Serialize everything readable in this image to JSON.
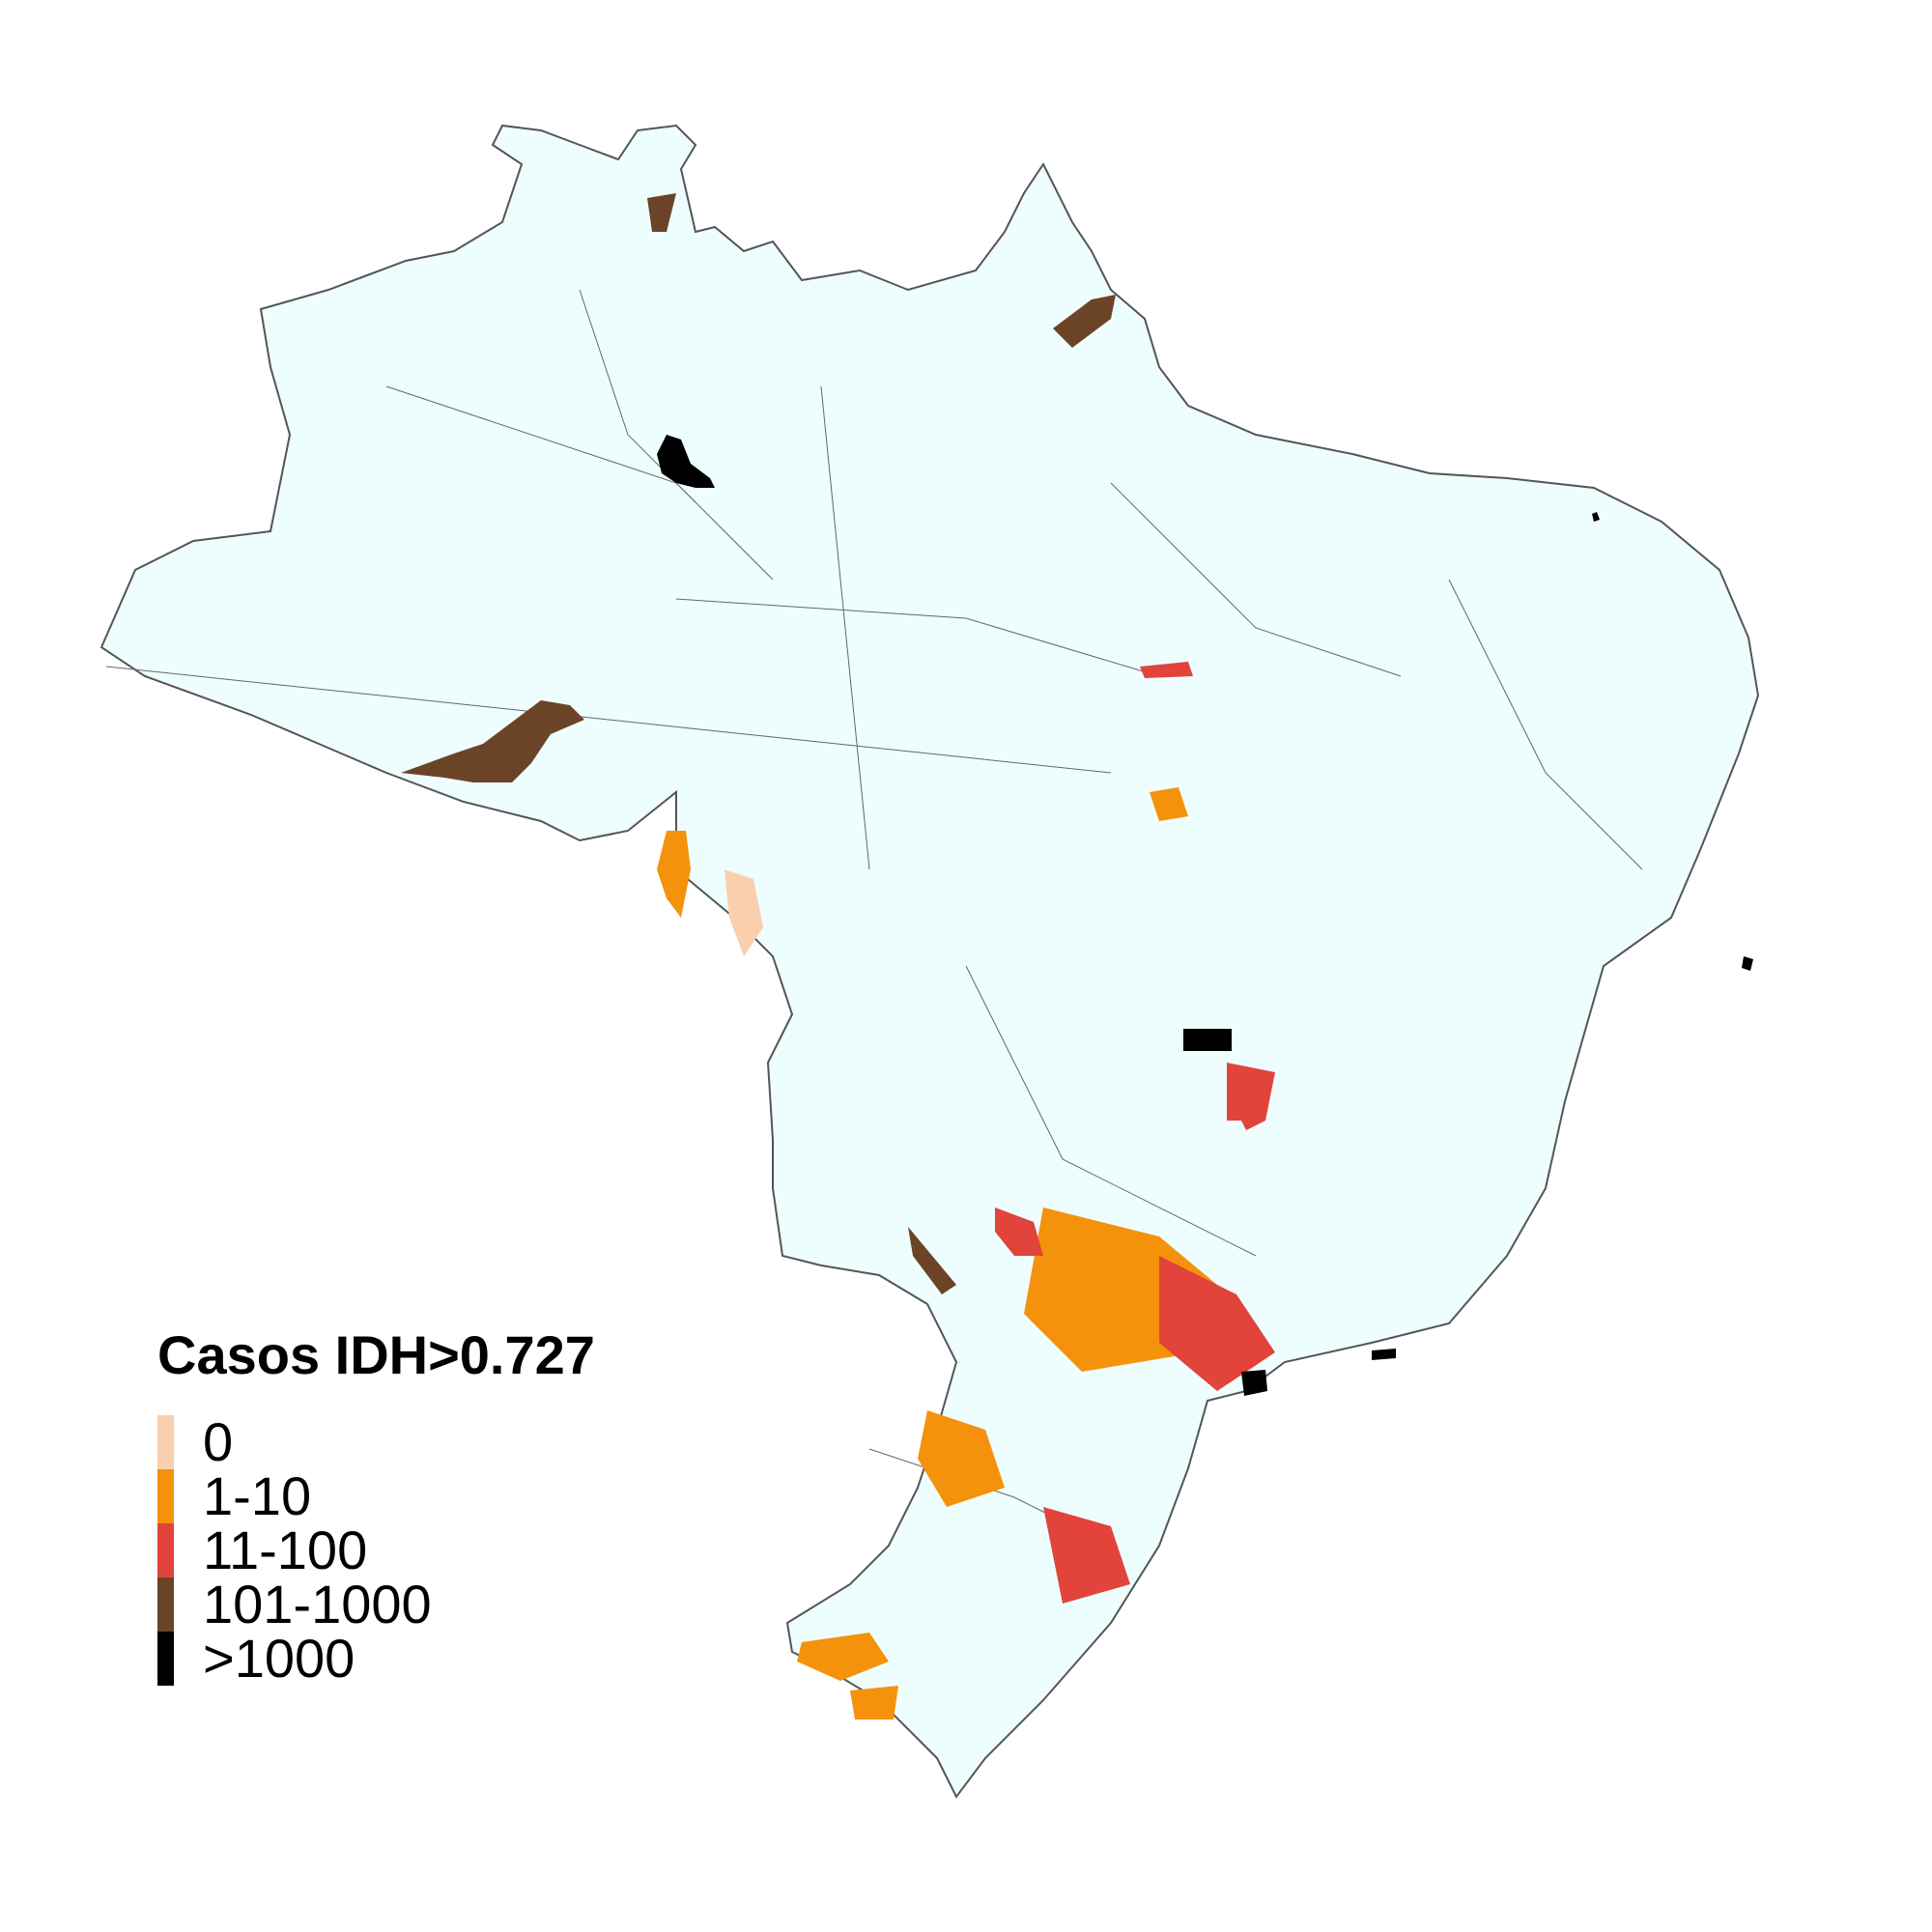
{
  "legend": {
    "title": "Casos IDH>0.727",
    "classes": [
      {
        "label": "0",
        "color": "#f9cfae"
      },
      {
        "label": "1-10",
        "color": "#f5920b"
      },
      {
        "label": "11-100",
        "color": "#e2433a"
      },
      {
        "label": "101-1000",
        "color": "#6b4427"
      },
      {
        "label": ">1000",
        "color": "#000000"
      }
    ]
  },
  "colors": {
    "land": "#eefdfe",
    "border": "#555555"
  }
}
